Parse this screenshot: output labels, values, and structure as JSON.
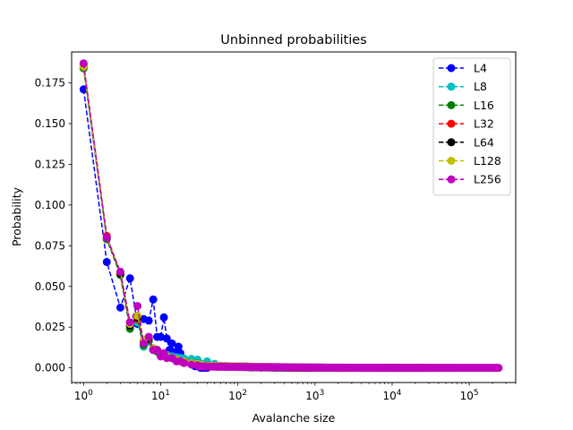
{
  "chart_data": {
    "type": "line",
    "title": "Unbinned probabilities",
    "xlabel": "Avalanche size",
    "ylabel": "Probability",
    "xscale": "log",
    "xlim": [
      0.7,
      400000
    ],
    "ylim": [
      -0.009,
      0.194
    ],
    "grid": false,
    "legend_position": "top-right",
    "line_style": "dashed",
    "marker": "circle",
    "x_tick_labels": [
      {
        "value": 1,
        "base": "10",
        "exp": "0"
      },
      {
        "value": 10,
        "base": "10",
        "exp": "1"
      },
      {
        "value": 100,
        "base": "10",
        "exp": "2"
      },
      {
        "value": 1000,
        "base": "10",
        "exp": "3"
      },
      {
        "value": 10000,
        "base": "10",
        "exp": "4"
      },
      {
        "value": 100000,
        "base": "10",
        "exp": "5"
      }
    ],
    "y_ticks": [
      0.0,
      0.025,
      0.05,
      0.075,
      0.1,
      0.125,
      0.15,
      0.175
    ],
    "y_tick_labels": [
      "0.000",
      "0.025",
      "0.050",
      "0.075",
      "0.100",
      "0.125",
      "0.150",
      "0.175"
    ],
    "series": [
      {
        "name": "L4",
        "color": "#0000ff",
        "xmax": 40,
        "points": [
          [
            1,
            0.171
          ],
          [
            2,
            0.065
          ],
          [
            3,
            0.037
          ],
          [
            4,
            0.055
          ],
          [
            5,
            0.027
          ],
          [
            6,
            0.03
          ],
          [
            7,
            0.029
          ],
          [
            8,
            0.042
          ],
          [
            9,
            0.019
          ],
          [
            10,
            0.019
          ],
          [
            11,
            0.031
          ],
          [
            12,
            0.018
          ],
          [
            13,
            0.011
          ],
          [
            14,
            0.015
          ],
          [
            15,
            0.008
          ],
          [
            16,
            0.01
          ],
          [
            17,
            0.013
          ],
          [
            18,
            0.009
          ],
          [
            19,
            0.006
          ],
          [
            20,
            0.005
          ],
          [
            22,
            0.004
          ],
          [
            24,
            0.003
          ],
          [
            26,
            0.002
          ],
          [
            28,
            0.001
          ],
          [
            30,
            0.001
          ],
          [
            33,
            0.0
          ],
          [
            36,
            0.0
          ],
          [
            40,
            0.0
          ]
        ]
      },
      {
        "name": "L8",
        "color": "#00bfbf",
        "xmax": 400,
        "points": [
          [
            1,
            0.184
          ],
          [
            2,
            0.079
          ],
          [
            3,
            0.058
          ],
          [
            4,
            0.025
          ],
          [
            5,
            0.028
          ],
          [
            6,
            0.013
          ],
          [
            7,
            0.016
          ],
          [
            8,
            0.011
          ],
          [
            9,
            0.01
          ],
          [
            10,
            0.009
          ],
          [
            12,
            0.008
          ],
          [
            14,
            0.007
          ],
          [
            16,
            0.0065
          ],
          [
            18,
            0.006
          ],
          [
            20,
            0.0058
          ],
          [
            25,
            0.0055
          ],
          [
            30,
            0.005
          ],
          [
            40,
            0.004
          ],
          [
            50,
            0.0025
          ],
          [
            70,
            0.001
          ],
          [
            100,
            0.0005
          ],
          [
            150,
            0.0002
          ],
          [
            200,
            0.0001
          ],
          [
            300,
            0.0
          ],
          [
            400,
            0.0
          ]
        ]
      },
      {
        "name": "L16",
        "color": "#008000",
        "xmax": 3000,
        "points": [
          [
            1,
            0.184
          ],
          [
            2,
            0.079
          ],
          [
            3,
            0.057
          ],
          [
            4,
            0.024
          ],
          [
            5,
            0.031
          ],
          [
            6,
            0.014
          ],
          [
            7,
            0.017
          ],
          [
            8,
            0.011
          ],
          [
            9,
            0.01
          ],
          [
            10,
            0.008
          ],
          [
            12,
            0.007
          ],
          [
            14,
            0.006
          ],
          [
            16,
            0.005
          ],
          [
            20,
            0.004
          ],
          [
            25,
            0.003
          ],
          [
            30,
            0.0025
          ]
        ]
      },
      {
        "name": "L32",
        "color": "#ff0000",
        "xmax": 12000,
        "points": [
          [
            1,
            0.186
          ],
          [
            2,
            0.081
          ],
          [
            3,
            0.058
          ],
          [
            4,
            0.026
          ],
          [
            5,
            0.03
          ],
          [
            6,
            0.016
          ],
          [
            7,
            0.019
          ],
          [
            8,
            0.012
          ],
          [
            9,
            0.011
          ],
          [
            10,
            0.009
          ],
          [
            12,
            0.007
          ],
          [
            14,
            0.006
          ],
          [
            16,
            0.005
          ],
          [
            20,
            0.004
          ],
          [
            25,
            0.003
          ],
          [
            30,
            0.0025
          ]
        ]
      },
      {
        "name": "L64",
        "color": "#000000",
        "xmax": 30000,
        "points": [
          [
            1,
            0.185
          ],
          [
            2,
            0.08
          ],
          [
            3,
            0.058
          ],
          [
            4,
            0.026
          ],
          [
            5,
            0.031
          ],
          [
            6,
            0.016
          ],
          [
            7,
            0.018
          ],
          [
            8,
            0.012
          ],
          [
            9,
            0.011
          ],
          [
            10,
            0.008
          ],
          [
            12,
            0.007
          ],
          [
            14,
            0.006
          ],
          [
            16,
            0.005
          ],
          [
            20,
            0.004
          ],
          [
            25,
            0.003
          ],
          [
            30,
            0.0025
          ]
        ]
      },
      {
        "name": "L128",
        "color": "#bfbf00",
        "xmax": 60000,
        "points": [
          [
            1,
            0.185
          ],
          [
            2,
            0.08
          ],
          [
            3,
            0.059
          ],
          [
            4,
            0.027
          ],
          [
            5,
            0.032
          ],
          [
            6,
            0.017
          ],
          [
            7,
            0.019
          ],
          [
            8,
            0.012
          ],
          [
            9,
            0.011
          ],
          [
            10,
            0.009
          ],
          [
            12,
            0.007
          ],
          [
            14,
            0.006
          ],
          [
            16,
            0.005
          ],
          [
            20,
            0.004
          ],
          [
            25,
            0.003
          ],
          [
            30,
            0.0025
          ]
        ]
      },
      {
        "name": "L256",
        "color": "#bf00bf",
        "xmax": 240000,
        "points": [
          [
            1,
            0.187
          ],
          [
            2,
            0.08
          ],
          [
            3,
            0.059
          ],
          [
            4,
            0.028
          ],
          [
            5,
            0.038
          ],
          [
            6,
            0.015
          ],
          [
            7,
            0.019
          ],
          [
            8,
            0.011
          ],
          [
            9,
            0.011
          ],
          [
            10,
            0.007
          ],
          [
            11,
            0.009
          ],
          [
            12,
            0.006
          ],
          [
            14,
            0.006
          ],
          [
            16,
            0.004
          ],
          [
            18,
            0.004
          ],
          [
            20,
            0.003
          ],
          [
            25,
            0.002
          ],
          [
            30,
            0.0015
          ]
        ]
      }
    ]
  }
}
